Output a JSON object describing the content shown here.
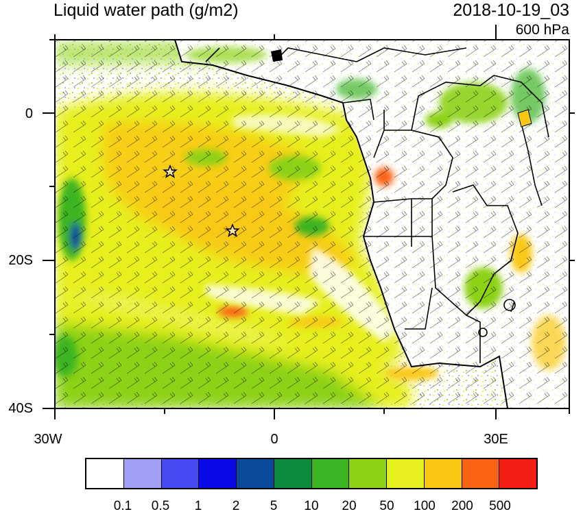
{
  "title": "Liquid water path (g/m2)",
  "datetime": "2018-10-19_03",
  "level": "600 hPa",
  "y_axis_labels": [
    "0",
    "20S",
    "40S"
  ],
  "x_axis_labels": [
    "30W",
    "0",
    "30E"
  ],
  "colorbar": {
    "colors": [
      "#ffffff",
      "#a0a0f5",
      "#4a4af5",
      "#0a0ae6",
      "#0a4a9a",
      "#0a8c3c",
      "#3cb424",
      "#8cd214",
      "#e6f01e",
      "#fac814",
      "#fa6414",
      "#f51e14"
    ],
    "labels": [
      "0.1",
      "0.5",
      "1",
      "2",
      "5",
      "10",
      "20",
      "50",
      "100",
      "200",
      "500"
    ]
  },
  "markers": [
    {
      "name": "star-marker-1",
      "icon": "star-icon"
    },
    {
      "name": "star-marker-2",
      "icon": "star-icon"
    }
  ]
}
